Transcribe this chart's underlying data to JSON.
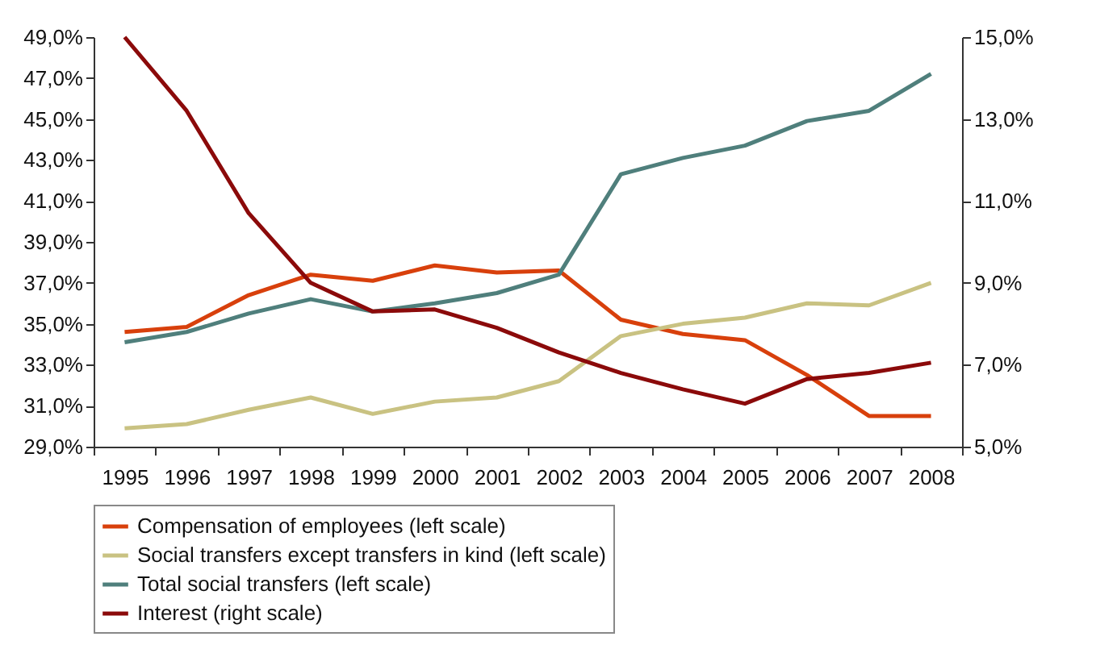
{
  "chart_data": {
    "type": "line",
    "categories": [
      "1995",
      "1996",
      "1997",
      "1998",
      "1999",
      "2000",
      "2001",
      "2002",
      "2003",
      "2004",
      "2005",
      "2006",
      "2007",
      "2008"
    ],
    "series": [
      {
        "name": "Compensation of employees (left scale)",
        "color": "#d8400c",
        "values": [
          34.6,
          34.85,
          36.4,
          37.4,
          37.1,
          37.85,
          37.5,
          37.6,
          35.2,
          34.5,
          34.2,
          32.5,
          30.5,
          30.5
        ]
      },
      {
        "name": "Social transfers except transfers in kind (left scale)",
        "color": "#c9c282",
        "values": [
          29.9,
          30.1,
          30.8,
          31.4,
          30.6,
          31.2,
          31.4,
          32.2,
          34.4,
          35.0,
          35.3,
          36.0,
          35.9,
          37.0
        ]
      },
      {
        "name": "Total social transfers (left scale)",
        "color": "#4f7f7c",
        "values": [
          34.1,
          34.6,
          35.5,
          36.2,
          35.6,
          36.0,
          36.5,
          37.4,
          42.3,
          43.1,
          43.7,
          44.9,
          45.4,
          47.2
        ]
      },
      {
        "name": "Interest (right scale)",
        "color": "#8b0a0a",
        "axis": "y2",
        "values": [
          15.0,
          13.2,
          10.7,
          9.0,
          8.3,
          8.35,
          7.9,
          7.3,
          6.8,
          6.4,
          6.05,
          6.65,
          6.8,
          7.05
        ]
      }
    ],
    "ylim": [
      29,
      49
    ],
    "yticks": [
      {
        "value": 29,
        "label": "29,0%"
      },
      {
        "value": 31,
        "label": "31,0%"
      },
      {
        "value": 33,
        "label": "33,0%"
      },
      {
        "value": 35,
        "label": "35,0%"
      },
      {
        "value": 37,
        "label": "37,0%"
      },
      {
        "value": 39,
        "label": "39,0%"
      },
      {
        "value": 41,
        "label": "41,0%"
      },
      {
        "value": 43,
        "label": "43,0%"
      },
      {
        "value": 45,
        "label": "45,0%"
      },
      {
        "value": 47,
        "label": "47,0%"
      },
      {
        "value": 49,
        "label": "49,0%"
      }
    ],
    "y2lim": [
      5,
      15
    ],
    "y2ticks": [
      {
        "value": 5,
        "label": "5,0%"
      },
      {
        "value": 7,
        "label": "7,0%"
      },
      {
        "value": 9,
        "label": "9,0%"
      },
      {
        "value": 11,
        "label": "11,0%"
      },
      {
        "value": 13,
        "label": "13,0%"
      },
      {
        "value": 15,
        "label": "15,0%"
      }
    ],
    "grid": false,
    "legend": "bottom",
    "line_style": "solid"
  }
}
